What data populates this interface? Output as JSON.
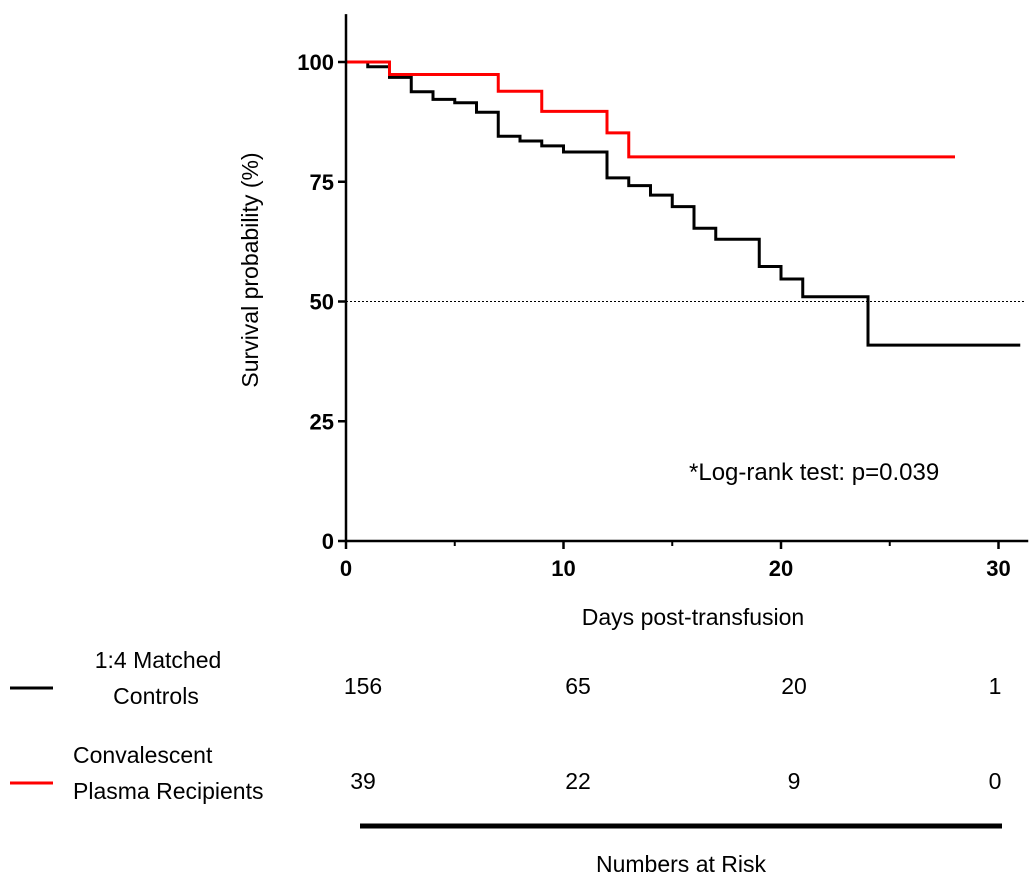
{
  "chart_data": {
    "type": "line",
    "subtype": "kaplan-meier step",
    "xlabel": "Days post-transfusion",
    "ylabel": "Survival probability (%)",
    "xlim": [
      0,
      31
    ],
    "ylim": [
      0,
      110
    ],
    "xticks": [
      0,
      10,
      20,
      30
    ],
    "xticks_minor": [
      5,
      15,
      25
    ],
    "yticks": [
      0,
      25,
      50,
      75,
      100
    ],
    "reference_line": {
      "y": 50,
      "style": "dotted"
    },
    "annotation": "*Log-rank test: p=0.039",
    "series": [
      {
        "label_lines": [
          "1:4 Matched",
          "Controls"
        ],
        "color": "#000000",
        "steps": [
          [
            0,
            100
          ],
          [
            1,
            99
          ],
          [
            2,
            96.8
          ],
          [
            3,
            93.8
          ],
          [
            4,
            92.2
          ],
          [
            5,
            91.5
          ],
          [
            6,
            89.5
          ],
          [
            7,
            84.5
          ],
          [
            8,
            83.5
          ],
          [
            9,
            82.5
          ],
          [
            10,
            81.2
          ],
          [
            12,
            75.8
          ],
          [
            13,
            74.2
          ],
          [
            14,
            72.2
          ],
          [
            15,
            69.8
          ],
          [
            16,
            65.3
          ],
          [
            17,
            63
          ],
          [
            19,
            57.3
          ],
          [
            20,
            54.7
          ],
          [
            21,
            51
          ],
          [
            24,
            40.9
          ],
          [
            31,
            40.9
          ]
        ],
        "numbers_at_risk": [
          "156",
          "65",
          "20",
          "1"
        ]
      },
      {
        "label_lines": [
          "Convalescent",
          "Plasma  Recipients"
        ],
        "color": "#ff0000",
        "steps": [
          [
            0,
            100
          ],
          [
            2,
            97.4
          ],
          [
            7,
            93.9
          ],
          [
            9,
            89.7
          ],
          [
            12,
            85.2
          ],
          [
            13,
            80.2
          ],
          [
            28,
            80.2
          ]
        ],
        "numbers_at_risk": [
          "39",
          "22",
          "9",
          "0"
        ]
      }
    ],
    "risk_table_title": "Numbers at Risk"
  }
}
